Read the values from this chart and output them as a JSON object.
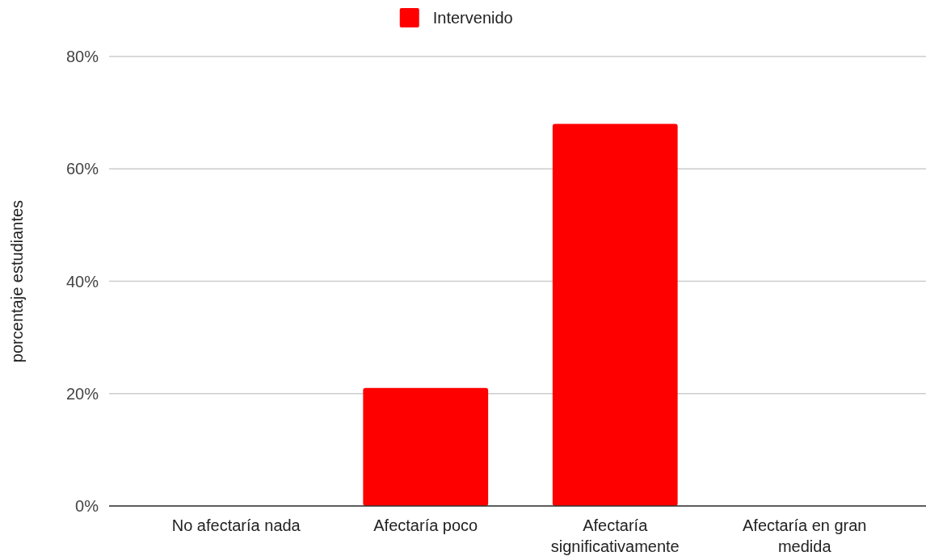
{
  "chart_data": {
    "type": "bar",
    "ylabel": "porcentaje estudiantes",
    "categories": [
      "No afectaría nada",
      "Afectaría poco",
      "Afectaría significativamente",
      "Afectaría en gran medida"
    ],
    "series": [
      {
        "name": "Intervenido",
        "color": "#ff0000",
        "values": [
          0,
          21,
          68,
          0
        ]
      }
    ],
    "ylim": [
      0,
      80
    ],
    "yticks": [
      {
        "value": 0,
        "label": "0%"
      },
      {
        "value": 20,
        "label": "20%"
      },
      {
        "value": 40,
        "label": "40%"
      },
      {
        "value": 60,
        "label": "60%"
      },
      {
        "value": 80,
        "label": "80%"
      }
    ],
    "grid": "y",
    "legend": "top"
  }
}
